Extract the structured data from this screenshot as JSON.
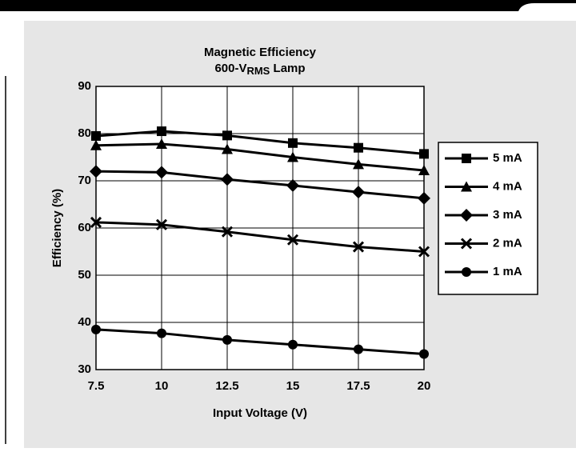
{
  "chart_data": {
    "type": "line",
    "title": "Magnetic Efficiency",
    "subtitle_parts": [
      "600-V",
      "RMS",
      " Lamp"
    ],
    "xlabel": "Input Voltage (V)",
    "ylabel": "Efficiency (%)",
    "x": [
      7.5,
      10,
      12.5,
      15,
      17.5,
      20
    ],
    "xlim": [
      7.5,
      20
    ],
    "xticks": [
      7.5,
      10,
      12.5,
      15,
      17.5,
      20
    ],
    "ylim": [
      30,
      90
    ],
    "yticks": [
      30,
      40,
      50,
      60,
      70,
      80,
      90
    ],
    "grid": true,
    "legend": "right",
    "series": [
      {
        "name": "5 mA",
        "color": "#000000",
        "marker": "square",
        "values": [
          79.5,
          80.5,
          79.6,
          78,
          77,
          75.7
        ]
      },
      {
        "name": "4 mA",
        "color": "#000000",
        "marker": "triangle",
        "values": [
          77.5,
          77.8,
          76.7,
          75,
          73.5,
          72.2
        ]
      },
      {
        "name": "3 mA",
        "color": "#000000",
        "marker": "diamond",
        "values": [
          72,
          71.8,
          70.3,
          69,
          67.6,
          66.3
        ]
      },
      {
        "name": "2 mA",
        "color": "#000000",
        "marker": "x",
        "values": [
          61.2,
          60.7,
          59.2,
          57.5,
          56,
          55
        ]
      },
      {
        "name": "1 mA",
        "color": "#000000",
        "marker": "circle",
        "values": [
          38.5,
          37.7,
          36.3,
          35.3,
          34.3,
          33.3
        ]
      }
    ]
  }
}
